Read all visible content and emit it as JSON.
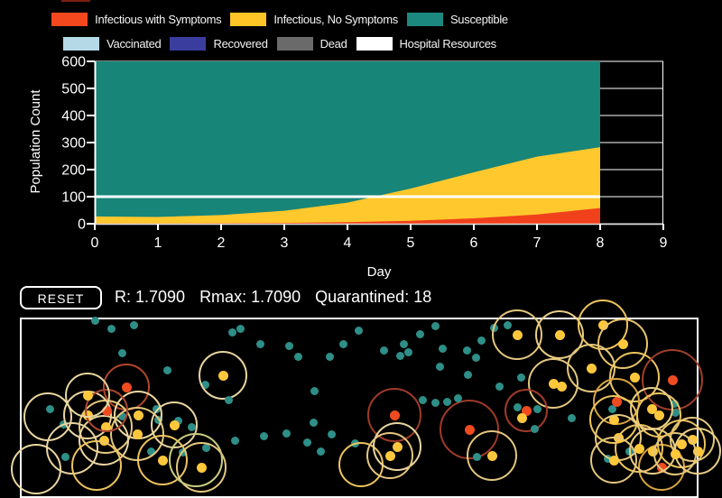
{
  "page": {
    "background": "#000000"
  },
  "clipped_swatch_color": "#7a1f10",
  "legend": {
    "rows": [
      [
        {
          "id": "infectious-symptoms",
          "label": "Infectious with Symptoms",
          "color": "#F3471D"
        },
        {
          "id": "infectious-no-symptoms",
          "label": "Infectious, No Symptoms",
          "color": "#FFC425"
        },
        {
          "id": "susceptible",
          "label": "Susceptible",
          "color": "#1C8980"
        }
      ],
      [
        {
          "id": "vaccinated",
          "label": "Vaccinated",
          "color": "#B5D9E6"
        },
        {
          "id": "recovered",
          "label": "Recovered",
          "color": "#3A3D9E"
        },
        {
          "id": "dead",
          "label": "Dead",
          "color": "#6A6A6A"
        },
        {
          "id": "hospital-resources",
          "label": "Hospital Resources",
          "color": "#FFFFFF"
        }
      ]
    ]
  },
  "chart_data": {
    "type": "area",
    "stacked": true,
    "xlabel": "Day",
    "ylabel": "Population Count",
    "x": [
      0,
      1,
      2,
      3,
      4,
      5,
      6,
      7,
      8
    ],
    "series": [
      {
        "name": "Infectious with Symptoms",
        "color": "#F0411C",
        "values": [
          1,
          1,
          2,
          3,
          6,
          11,
          20,
          34,
          58
        ]
      },
      {
        "name": "Infectious, No Symptoms",
        "color": "#FFC82D",
        "values": [
          26,
          24,
          30,
          45,
          72,
          119,
          170,
          214,
          225
        ]
      },
      {
        "name": "Susceptible",
        "color": "#178578",
        "values": [
          573,
          575,
          568,
          552,
          522,
          470,
          410,
          352,
          317
        ]
      }
    ],
    "hospital_line": {
      "name": "Hospital Resources",
      "color": "#FFFFFF",
      "value": 100
    },
    "xlim": [
      0,
      9
    ],
    "ylim": [
      0,
      600
    ],
    "yticks": [
      0,
      100,
      200,
      300,
      400,
      500,
      600
    ],
    "xticks": [
      0,
      1,
      2,
      3,
      4,
      5,
      6,
      7,
      8,
      9
    ],
    "grid": true,
    "legend_position": "top"
  },
  "controls": {
    "reset_label": "RESET",
    "stats": [
      {
        "id": "r",
        "label": "R:",
        "value": "1.7090"
      },
      {
        "id": "rmax",
        "label": "Rmax:",
        "value": "1.7090"
      },
      {
        "id": "quarantined",
        "label": "Quarantined:",
        "value": "18"
      }
    ]
  },
  "simulation": {
    "border_color": "#FFFFFF",
    "state_colors": {
      "susceptible": "#2E8F88",
      "infectious_no_symptoms": "#FFC83C",
      "infectious_symptoms": "#EF4B20"
    },
    "agents_columns": [
      "x",
      "y",
      "state",
      "ring_radius",
      "ring_color"
    ],
    "agents": [
      [
        105,
        355,
        "susceptible",
        0,
        ""
      ],
      [
        123,
        364,
        "susceptible",
        0,
        ""
      ],
      [
        148,
        360,
        "susceptible",
        0,
        ""
      ],
      [
        257,
        368,
        "susceptible",
        0,
        ""
      ],
      [
        266,
        364,
        "susceptible",
        0,
        ""
      ],
      [
        288,
        381,
        "susceptible",
        0,
        ""
      ],
      [
        320,
        383,
        "susceptible",
        0,
        ""
      ],
      [
        330,
        395,
        "susceptible",
        0,
        ""
      ],
      [
        365,
        395,
        "susceptible",
        0,
        ""
      ],
      [
        380,
        381,
        "susceptible",
        0,
        ""
      ],
      [
        397,
        366,
        "susceptible",
        0,
        ""
      ],
      [
        135,
        391,
        "susceptible",
        0,
        ""
      ],
      [
        185,
        410,
        "susceptible",
        0,
        ""
      ],
      [
        227,
        426,
        "susceptible",
        0,
        ""
      ],
      [
        348,
        433,
        "susceptible",
        0,
        ""
      ],
      [
        140,
        429,
        "infectious_symptoms",
        26,
        "#B1472B"
      ],
      [
        247,
        416,
        "infectious_no_symptoms",
        27,
        "#E9D5A0"
      ],
      [
        482,
        361,
        "susceptible",
        0,
        ""
      ],
      [
        465,
        370,
        "susceptible",
        0,
        ""
      ],
      [
        425,
        388,
        "susceptible",
        0,
        ""
      ],
      [
        447,
        381,
        "susceptible",
        0,
        ""
      ],
      [
        452,
        390,
        "susceptible",
        0,
        ""
      ],
      [
        443,
        394,
        "susceptible",
        0,
        ""
      ],
      [
        490,
        386,
        "susceptible",
        0,
        ""
      ],
      [
        517,
        388,
        "susceptible",
        0,
        ""
      ],
      [
        527,
        396,
        "susceptible",
        0,
        ""
      ],
      [
        487,
        406,
        "susceptible",
        0,
        ""
      ],
      [
        518,
        415,
        "susceptible",
        0,
        ""
      ],
      [
        553,
        428,
        "susceptible",
        0,
        ""
      ],
      [
        577,
        418,
        "susceptible",
        0,
        ""
      ],
      [
        547,
        363,
        "susceptible",
        0,
        ""
      ],
      [
        562,
        360,
        "susceptible",
        0,
        ""
      ],
      [
        533,
        377,
        "susceptible",
        0,
        ""
      ],
      [
        573,
        371,
        "infectious_no_symptoms",
        28,
        "#E4C77E"
      ],
      [
        620,
        371,
        "infectious_no_symptoms",
        27,
        "#EACD86"
      ],
      [
        668,
        360,
        "infectious_no_symptoms",
        28,
        "#EDC45F"
      ],
      [
        690,
        381,
        "infectious_no_symptoms",
        28,
        "#E9C56C"
      ],
      [
        655,
        408,
        "infectious_no_symptoms",
        27,
        "#E4C77E"
      ],
      [
        703,
        418,
        "infectious_no_symptoms",
        28,
        "#EDC45F"
      ],
      [
        613,
        425,
        "infectious_no_symptoms",
        28,
        "#E4C77E"
      ],
      [
        622,
        428,
        "infectious_no_symptoms",
        0,
        ""
      ],
      [
        745,
        421,
        "infectious_symptoms",
        34,
        "#A04028"
      ],
      [
        55,
        453,
        "susceptible",
        0,
        ""
      ],
      [
        70,
        470,
        "susceptible",
        0,
        ""
      ],
      [
        135,
        461,
        "susceptible",
        0,
        ""
      ],
      [
        173,
        453,
        "susceptible",
        0,
        ""
      ],
      [
        175,
        465,
        "susceptible",
        0,
        ""
      ],
      [
        197,
        466,
        "susceptible",
        0,
        ""
      ],
      [
        212,
        473,
        "susceptible",
        0,
        ""
      ],
      [
        72,
        506,
        "susceptible",
        0,
        ""
      ],
      [
        167,
        500,
        "susceptible",
        0,
        ""
      ],
      [
        202,
        501,
        "susceptible",
        0,
        ""
      ],
      [
        228,
        496,
        "susceptible",
        0,
        ""
      ],
      [
        253,
        443,
        "susceptible",
        0,
        ""
      ],
      [
        260,
        488,
        "susceptible",
        0,
        ""
      ],
      [
        292,
        483,
        "susceptible",
        0,
        ""
      ],
      [
        317,
        480,
        "susceptible",
        0,
        ""
      ],
      [
        340,
        490,
        "susceptible",
        0,
        ""
      ],
      [
        355,
        500,
        "susceptible",
        0,
        ""
      ],
      [
        347,
        468,
        "susceptible",
        0,
        ""
      ],
      [
        367,
        481,
        "susceptible",
        0,
        ""
      ],
      [
        393,
        491,
        "susceptible",
        0,
        ""
      ],
      [
        97,
        460,
        "infectious_no_symptoms",
        27,
        "#E9D5A0"
      ],
      [
        117,
        473,
        "infectious_no_symptoms",
        30,
        "#E4C77E"
      ],
      [
        115,
        488,
        "infectious_no_symptoms",
        28,
        "#E9D5A0"
      ],
      [
        153,
        460,
        "infectious_no_symptoms",
        27,
        "#EED9A2"
      ],
      [
        152,
        481,
        "infectious_no_symptoms",
        30,
        "#E4C77E"
      ],
      [
        193,
        471,
        "infectious_no_symptoms",
        26,
        "#E9D5A0"
      ],
      [
        180,
        510,
        "infectious_no_symptoms",
        28,
        "#EDC45F"
      ],
      [
        223,
        518,
        "infectious_no_symptoms",
        28,
        "#E4C77E"
      ],
      [
        118,
        455,
        "infectious_symptoms",
        24,
        "#A84430"
      ],
      [
        97,
        438,
        "infectious_no_symptoms",
        25,
        "#E9D5A0"
      ],
      [
        53,
        462,
        "quarantine_ring",
        27,
        "#E9D5A0"
      ],
      [
        80,
        497,
        "quarantine_ring",
        29,
        "#E9D5A0"
      ],
      [
        107,
        516,
        "quarantine_ring",
        28,
        "#EDC45F"
      ],
      [
        40,
        520,
        "quarantine_ring",
        28,
        "#E9D5A0"
      ],
      [
        217,
        510,
        "quarantine_ring",
        30,
        "#C9CC80"
      ],
      [
        400,
        515,
        "quarantine_ring",
        25,
        "#EDC45F"
      ],
      [
        437,
        460,
        "infectious_symptoms",
        30,
        "#9E3A28"
      ],
      [
        520,
        476,
        "infectious_symptoms",
        33,
        "#9E3A28"
      ],
      [
        583,
        455,
        "infectious_symptoms",
        24,
        "#9E3A28"
      ],
      [
        578,
        463,
        "infectious_no_symptoms",
        0,
        ""
      ],
      [
        545,
        505,
        "infectious_no_symptoms",
        28,
        "#E4C77E"
      ],
      [
        440,
        495,
        "infectious_no_symptoms",
        27,
        "#E9D5A0"
      ],
      [
        432,
        505,
        "infectious_no_symptoms",
        26,
        "#E4C77E"
      ],
      [
        468,
        443,
        "susceptible",
        0,
        ""
      ],
      [
        482,
        446,
        "susceptible",
        0,
        ""
      ],
      [
        495,
        445,
        "susceptible",
        0,
        ""
      ],
      [
        507,
        441,
        "susceptible",
        0,
        ""
      ],
      [
        573,
        451,
        "susceptible",
        0,
        ""
      ],
      [
        595,
        453,
        "susceptible",
        0,
        ""
      ],
      [
        592,
        475,
        "susceptible",
        0,
        ""
      ],
      [
        633,
        463,
        "susceptible",
        0,
        ""
      ],
      [
        678,
        453,
        "susceptible",
        0,
        ""
      ],
      [
        747,
        447,
        "susceptible",
        0,
        ""
      ],
      [
        748,
        457,
        "susceptible",
        0,
        ""
      ],
      [
        697,
        500,
        "susceptible",
        0,
        ""
      ],
      [
        673,
        508,
        "susceptible",
        0,
        ""
      ],
      [
        528,
        506,
        "susceptible",
        0,
        ""
      ],
      [
        683,
        445,
        "infectious_symptoms",
        26,
        "#D8A43F"
      ],
      [
        733,
        518,
        "infectious_symptoms",
        26,
        "#D8A43F"
      ],
      [
        680,
        465,
        "infectious_no_symptoms",
        27,
        "#EDC45F"
      ],
      [
        685,
        485,
        "infectious_no_symptoms",
        26,
        "#E4C77E"
      ],
      [
        708,
        497,
        "infectious_no_symptoms",
        27,
        "#EDC45F"
      ],
      [
        723,
        500,
        "infectious_no_symptoms",
        26,
        "#EACD86"
      ],
      [
        755,
        492,
        "infectious_no_symptoms",
        27,
        "#EDC45F"
      ],
      [
        767,
        487,
        "infectious_no_symptoms",
        25,
        "#E4C77E"
      ],
      [
        773,
        500,
        "infectious_no_symptoms",
        26,
        "#EACD86"
      ],
      [
        748,
        503,
        "infectious_no_symptoms",
        24,
        "#E4C77E"
      ],
      [
        680,
        510,
        "infectious_no_symptoms",
        26,
        "#E4C77E"
      ],
      [
        730,
        460,
        "infectious_no_symptoms",
        25,
        "#EDC45F"
      ],
      [
        722,
        453,
        "infectious_no_symptoms",
        24,
        "#EACD86"
      ]
    ]
  }
}
